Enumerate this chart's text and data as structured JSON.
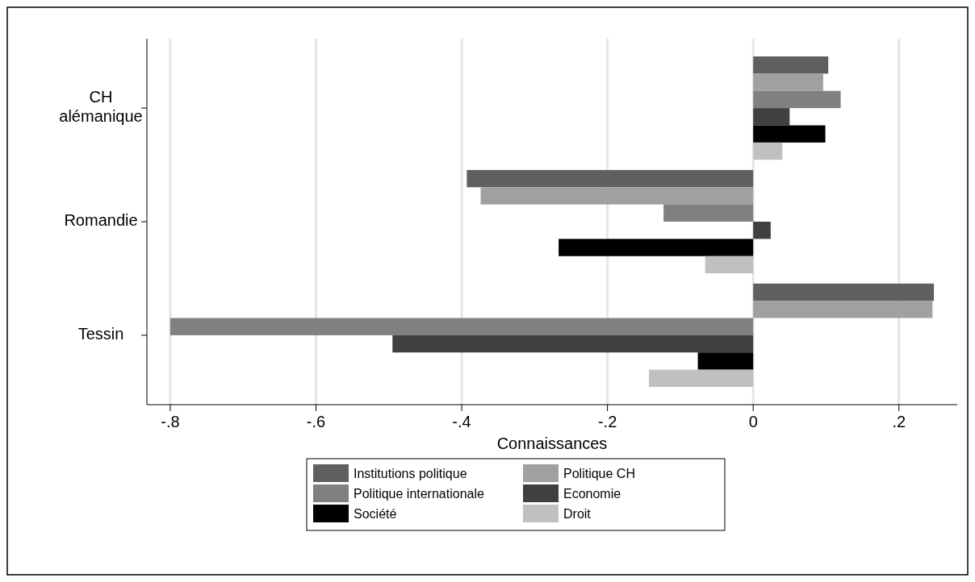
{
  "chart_data": {
    "type": "bar",
    "orientation": "horizontal",
    "xlabel": "Connaissances",
    "categories": [
      "CH\nalémanique",
      "Romandie",
      "Tessin"
    ],
    "series": [
      {
        "name": "Institutions politique",
        "color": "#5f5f5f",
        "values": [
          0.103,
          -0.393,
          0.248
        ]
      },
      {
        "name": "Politique CH",
        "color": "#a0a0a0",
        "values": [
          0.096,
          -0.374,
          0.246
        ]
      },
      {
        "name": "Politique internationale",
        "color": "#808080",
        "values": [
          0.12,
          -0.123,
          -0.8
        ]
      },
      {
        "name": "Economie",
        "color": "#404040",
        "values": [
          0.05,
          0.024,
          -0.495
        ]
      },
      {
        "name": "Société",
        "color": "#000000",
        "values": [
          0.099,
          -0.267,
          -0.076
        ]
      },
      {
        "name": "Droit",
        "color": "#c0c0c0",
        "values": [
          0.04,
          -0.066,
          -0.143
        ]
      }
    ],
    "xlim": [
      -0.832,
      0.28
    ],
    "xticks": [
      {
        "value": -0.8,
        "label": "-.8"
      },
      {
        "value": -0.6,
        "label": "-.6"
      },
      {
        "value": -0.4,
        "label": "-.4"
      },
      {
        "value": -0.2,
        "label": "-.2"
      },
      0,
      {
        "value": 0.2,
        "label": ".2"
      }
    ],
    "grid": "x",
    "legend": "bottom"
  }
}
